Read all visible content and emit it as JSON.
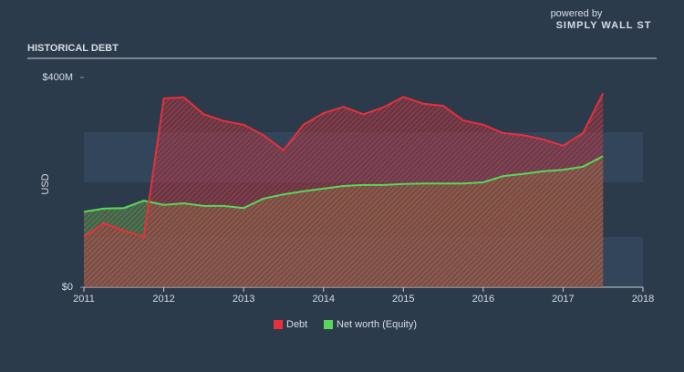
{
  "logo": {
    "tagline": "powered by",
    "name": "SIMPLY WALL ST"
  },
  "chart_data": {
    "type": "area",
    "title": "HISTORICAL DEBT",
    "y_label": "USD",
    "x": [
      2011,
      2011.25,
      2011.5,
      2011.75,
      2012,
      2012.25,
      2012.5,
      2012.75,
      2013,
      2013.25,
      2013.5,
      2013.75,
      2014,
      2014.25,
      2014.5,
      2014.75,
      2015,
      2015.25,
      2015.5,
      2015.75,
      2016,
      2016.25,
      2016.5,
      2016.75,
      2017,
      2017.25,
      2017.5
    ],
    "series": [
      {
        "name": "Debt",
        "color": "#e8303a",
        "values": [
          96,
          122,
          108,
          96,
          360,
          362,
          330,
          317,
          310,
          290,
          261,
          310,
          332,
          344,
          330,
          343,
          363,
          350,
          346,
          318,
          310,
          294,
          290,
          282,
          270,
          294,
          370
        ]
      },
      {
        "name": "Net worth (Equity)",
        "color": "#5ad65a",
        "values": [
          144,
          150,
          151,
          165,
          157,
          160,
          155,
          155,
          151,
          169,
          177,
          183,
          188,
          193,
          195,
          195,
          197,
          198,
          198,
          198,
          200,
          212,
          216,
          221,
          224,
          230,
          250
        ]
      }
    ],
    "xlim": [
      2011,
      2018
    ],
    "xticks": [
      2011,
      2012,
      2013,
      2014,
      2015,
      2016,
      2017,
      2018
    ],
    "ylim": [
      0,
      400
    ],
    "yticks": [
      {
        "value": 0,
        "label": "$0"
      },
      {
        "value": 400,
        "label": "$400M"
      }
    ],
    "legend": "bottom"
  }
}
